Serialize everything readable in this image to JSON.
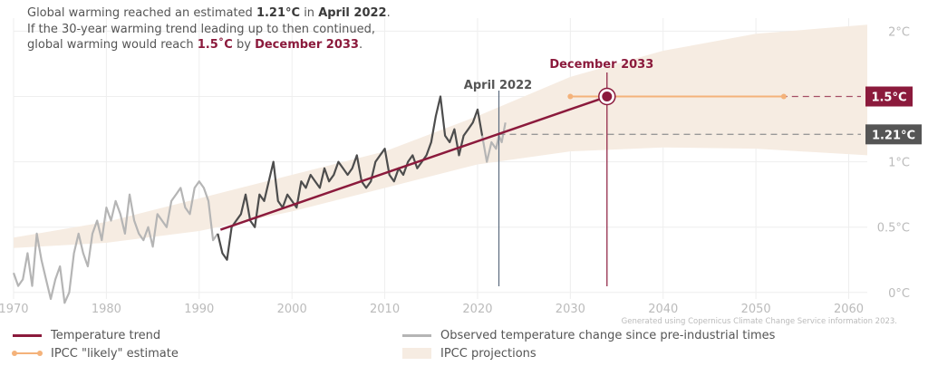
{
  "headline": {
    "line1_pre": "Global warming reached an estimated ",
    "value_current": "1.21°C",
    "line1_mid": " in ",
    "date_current": "April 2022",
    "line1_post": ".",
    "line2": "If the 30-year warming trend leading up to then continued,",
    "line3_pre": "global warming would reach ",
    "value_target": "1.5˚C",
    "line3_mid": " by ",
    "date_target": "December 2033",
    "line3_post": "."
  },
  "credit": "Generated using Copernicus Climate Change Service information 2023.",
  "colors": {
    "trend": "#8b1a3c",
    "observed_recent": "#4d4d4d",
    "observed_early": "#b5b5b5",
    "ipcc_likely": "#f4b27a",
    "ipcc_band": "#f6ece2",
    "current_marker": "#5b6b7e",
    "grid": "#eeeeee",
    "axis_text": "#bbbbbb"
  },
  "legend": [
    {
      "key": "trend",
      "label": "Temperature trend"
    },
    {
      "key": "observed",
      "label": "Observed temperature change since pre-industrial times"
    },
    {
      "key": "ipcc_likely",
      "label": "IPCC \"likely\" estimate"
    },
    {
      "key": "ipcc_band",
      "label": "IPCC projections"
    }
  ],
  "chart_data": {
    "type": "line",
    "title": "",
    "xlabel": "",
    "ylabel": "",
    "xlim": [
      1970,
      2062
    ],
    "ylim": [
      -0.05,
      2.1
    ],
    "x_ticks": [
      1970,
      1980,
      1990,
      2000,
      2010,
      2020,
      2030,
      2040,
      2050,
      2060
    ],
    "y_ticks": [
      {
        "value": 0,
        "label": "0°C"
      },
      {
        "value": 0.5,
        "label": "0.5°C"
      },
      {
        "value": 1,
        "label": "1°C"
      },
      {
        "value": 1.5,
        "label": "1.5°C"
      },
      {
        "value": 2,
        "label": "2°C"
      }
    ],
    "grid": true,
    "legend_position": "bottom",
    "series": [
      {
        "name": "Observed temperature change since pre-industrial times",
        "x": [
          1970.0,
          1970.5,
          1971.0,
          1971.5,
          1972.0,
          1972.5,
          1973.0,
          1973.5,
          1974.0,
          1974.5,
          1975.0,
          1975.5,
          1976.0,
          1976.5,
          1977.0,
          1977.5,
          1978.0,
          1978.5,
          1979.0,
          1979.5,
          1980.0,
          1980.5,
          1981.0,
          1981.5,
          1982.0,
          1982.5,
          1983.0,
          1983.5,
          1984.0,
          1984.5,
          1985.0,
          1985.5,
          1986.0,
          1986.5,
          1987.0,
          1987.5,
          1988.0,
          1988.5,
          1989.0,
          1989.5,
          1990.0,
          1990.5,
          1991.0,
          1991.5,
          1992.0,
          1992.5,
          1993.0,
          1993.5,
          1994.0,
          1994.5,
          1995.0,
          1995.5,
          1996.0,
          1996.5,
          1997.0,
          1997.5,
          1998.0,
          1998.5,
          1999.0,
          1999.5,
          2000.0,
          2000.5,
          2001.0,
          2001.5,
          2002.0,
          2002.5,
          2003.0,
          2003.5,
          2004.0,
          2004.5,
          2005.0,
          2005.5,
          2006.0,
          2006.5,
          2007.0,
          2007.5,
          2008.0,
          2008.5,
          2009.0,
          2009.5,
          2010.0,
          2010.5,
          2011.0,
          2011.5,
          2012.0,
          2012.5,
          2013.0,
          2013.5,
          2014.0,
          2014.5,
          2015.0,
          2015.5,
          2016.0,
          2016.5,
          2017.0,
          2017.5,
          2018.0,
          2018.5,
          2019.0,
          2019.5,
          2020.0,
          2020.5,
          2021.0,
          2021.5,
          2022.0,
          2022.3,
          2022.6,
          2023.0
        ],
        "y": [
          0.15,
          0.05,
          0.1,
          0.3,
          0.05,
          0.45,
          0.25,
          0.1,
          -0.05,
          0.1,
          0.2,
          -0.08,
          0.0,
          0.3,
          0.45,
          0.3,
          0.2,
          0.45,
          0.55,
          0.4,
          0.65,
          0.55,
          0.7,
          0.6,
          0.45,
          0.75,
          0.55,
          0.45,
          0.4,
          0.5,
          0.35,
          0.6,
          0.55,
          0.5,
          0.7,
          0.75,
          0.8,
          0.65,
          0.6,
          0.8,
          0.85,
          0.8,
          0.7,
          0.4,
          0.45,
          0.3,
          0.25,
          0.5,
          0.55,
          0.6,
          0.75,
          0.55,
          0.5,
          0.75,
          0.7,
          0.85,
          1.0,
          0.7,
          0.65,
          0.75,
          0.7,
          0.65,
          0.85,
          0.8,
          0.9,
          0.85,
          0.8,
          0.95,
          0.85,
          0.9,
          1.0,
          0.95,
          0.9,
          0.95,
          1.05,
          0.85,
          0.8,
          0.85,
          1.0,
          1.05,
          1.1,
          0.9,
          0.85,
          0.95,
          0.9,
          1.0,
          1.05,
          0.95,
          1.0,
          1.05,
          1.15,
          1.35,
          1.5,
          1.2,
          1.15,
          1.25,
          1.05,
          1.2,
          1.25,
          1.3,
          1.4,
          1.2,
          1.0,
          1.15,
          1.1,
          1.2,
          1.15,
          1.3
        ]
      },
      {
        "name": "Temperature trend",
        "x": [
          1992.3,
          2034.0
        ],
        "y": [
          0.48,
          1.5
        ]
      },
      {
        "name": "IPCC \"likely\" estimate",
        "x": [
          2030,
          2053
        ],
        "y": [
          1.5,
          1.5
        ]
      },
      {
        "name": "IPCC projections",
        "x": [
          1970,
          1980,
          1990,
          2000,
          2010,
          2020,
          2030,
          2040,
          2050,
          2062
        ],
        "lo": [
          0.34,
          0.38,
          0.47,
          0.62,
          0.8,
          0.98,
          1.08,
          1.11,
          1.1,
          1.05
        ],
        "hi": [
          0.42,
          0.54,
          0.72,
          0.9,
          1.08,
          1.35,
          1.65,
          1.85,
          1.98,
          2.05
        ]
      }
    ],
    "annotations": [
      {
        "label": "April 2022",
        "x": 2022.3,
        "value": 1.21,
        "value_label": "1.21°C"
      },
      {
        "label": "December 2033",
        "x": 2033.95,
        "value": 1.5,
        "value_label": "1.5°C"
      }
    ]
  }
}
